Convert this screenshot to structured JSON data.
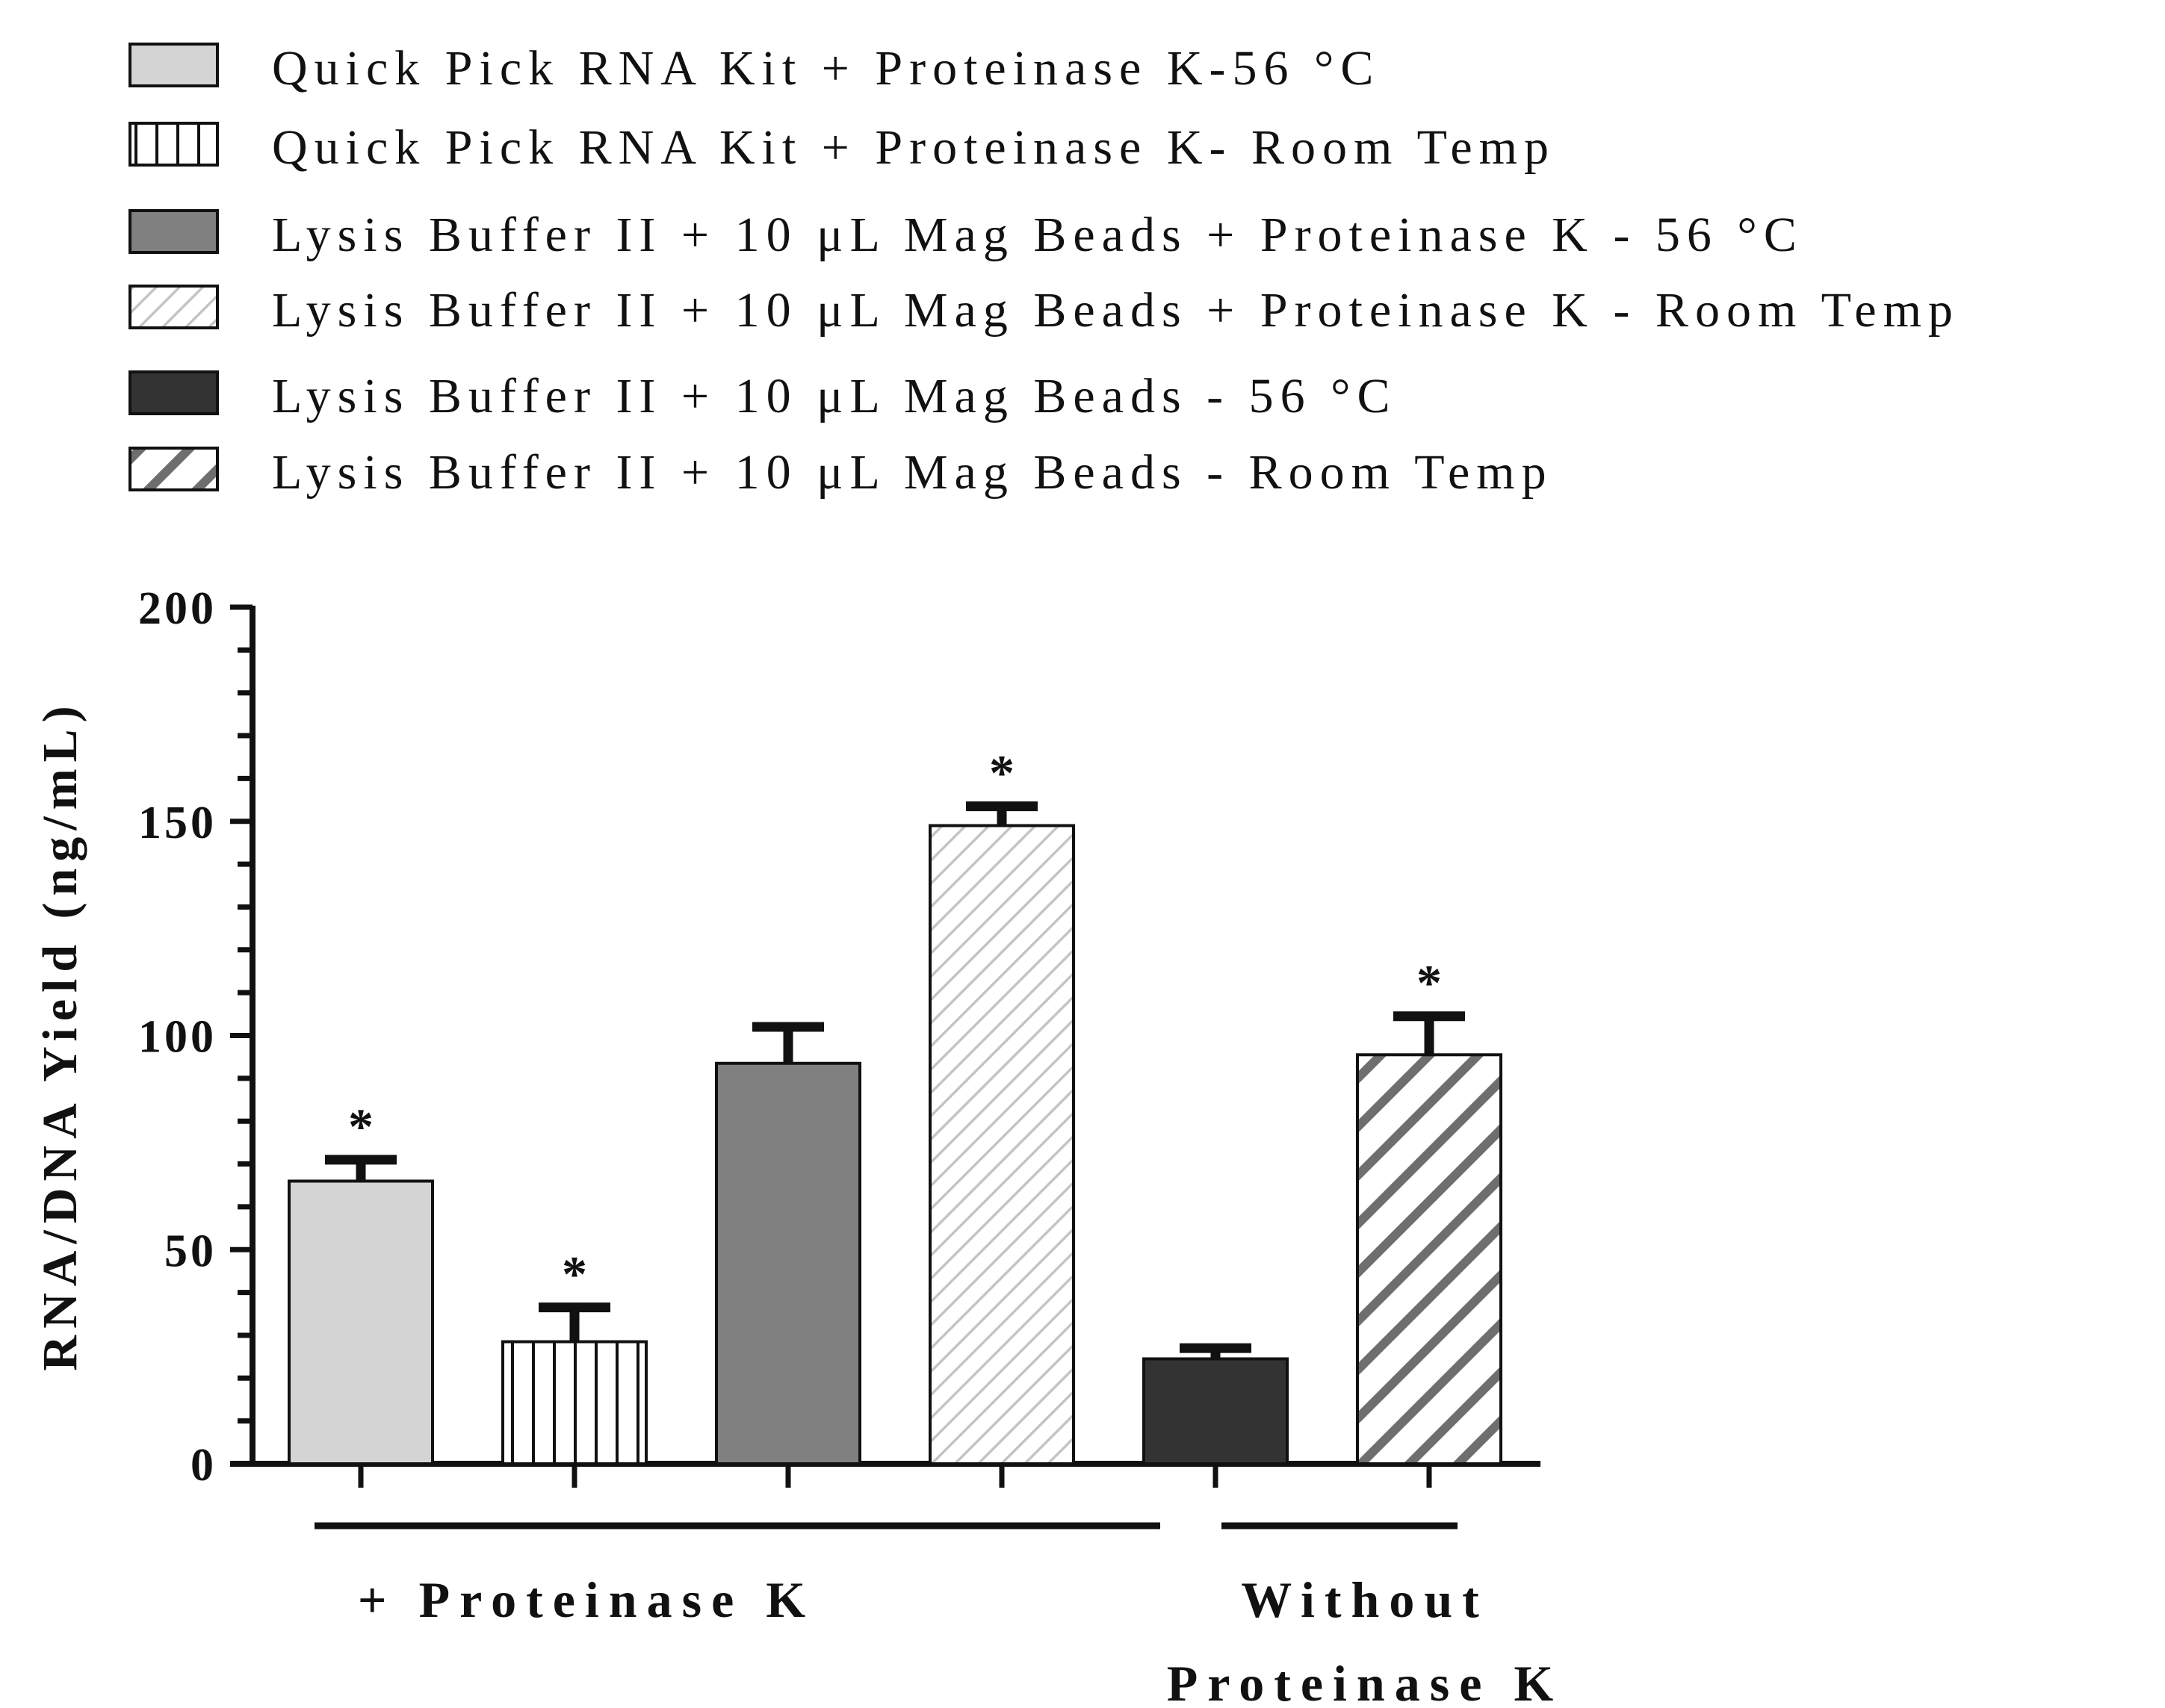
{
  "chart_data": {
    "type": "bar",
    "title": "",
    "xlabel": "",
    "ylabel": "RNA/DNA Yield (ng/mL)",
    "ylim": [
      0,
      200
    ],
    "yticks": [
      "0",
      "50",
      "100",
      "150",
      "200"
    ],
    "legend_position": "top-left",
    "grid": false,
    "series": [
      {
        "name": "Quick Pick RNA Kit + Proteinase K-56 °C",
        "value": 66,
        "error": 5,
        "significant": true,
        "fill": "solid",
        "color": "#d4d4d4"
      },
      {
        "name": "Quick Pick RNA Kit + Proteinase K- Room Temp",
        "value": 28.5,
        "error": 8,
        "significant": true,
        "fill": "vertical-lines",
        "color": "#ffffff"
      },
      {
        "name": "Lysis Buffer II + 10 μL Mag Beads + Proteinase K - 56 °C",
        "value": 93.5,
        "error": 8.5,
        "significant": false,
        "fill": "solid",
        "color": "#808080"
      },
      {
        "name": "Lysis Buffer II + 10 μL Mag Beads + Proteinase K - Room Temp",
        "value": 149,
        "error": 4.5,
        "significant": true,
        "fill": "light-diagonal",
        "color": "#c8c8c8"
      },
      {
        "name": "Lysis Buffer II + 10 μL Mag Beads - 56 °C",
        "value": 24.5,
        "error": 2.5,
        "significant": false,
        "fill": "solid",
        "color": "#333333"
      },
      {
        "name": "Lysis Buffer II + 10 μL Mag Beads - Room Temp",
        "value": 95.5,
        "error": 9,
        "significant": true,
        "fill": "dark-diagonal",
        "color": "#707070"
      }
    ],
    "significance_marker": "*",
    "groups": [
      {
        "label_lines": [
          "+ Proteinase K"
        ],
        "bars": [
          0,
          1,
          2,
          3
        ]
      },
      {
        "label_lines": [
          "Without",
          "Proteinase K"
        ],
        "bars": [
          4,
          5
        ]
      }
    ]
  }
}
